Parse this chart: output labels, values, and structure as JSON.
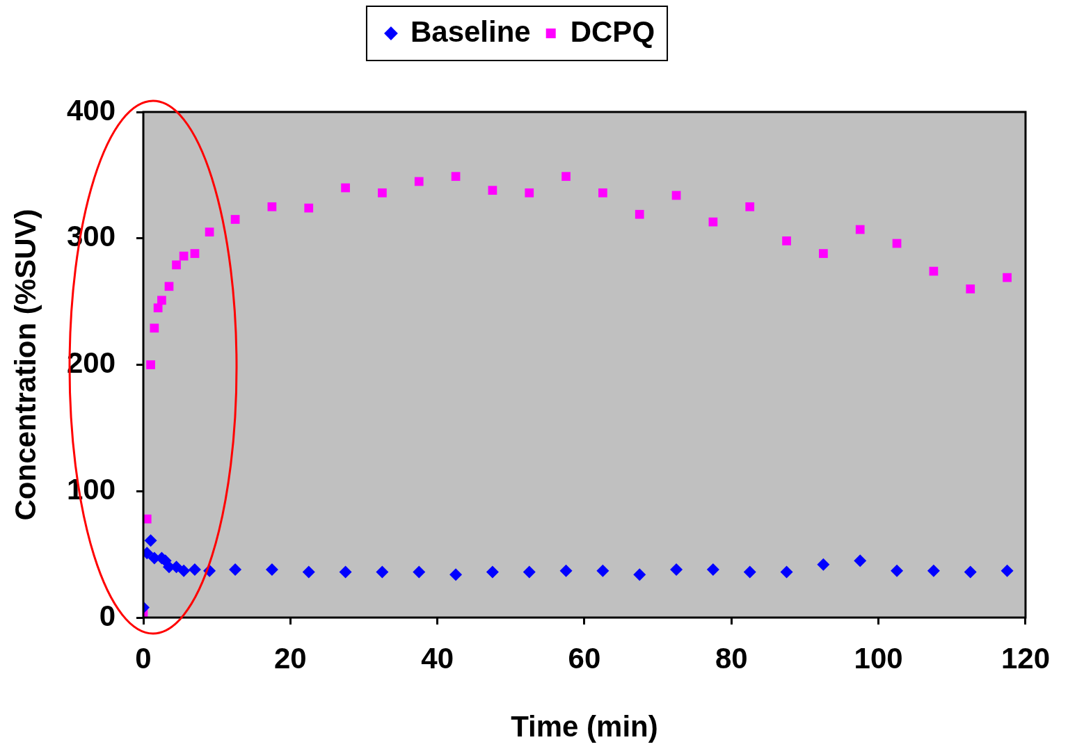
{
  "chart_data": {
    "type": "scatter",
    "xlabel": "Time (min)",
    "ylabel": "Concentration (%SUV)",
    "xlim": [
      0,
      120
    ],
    "xticks": [
      0,
      20,
      40,
      60,
      80,
      100,
      120
    ],
    "ylim": [
      0,
      400
    ],
    "yticks": [
      0,
      100,
      200,
      300,
      400
    ],
    "legend": "top",
    "series": [
      {
        "name": "Baseline",
        "color": "#0000ff",
        "marker": "diamond",
        "x": [
          0,
          0.5,
          1,
          1.5,
          2.5,
          3,
          3.5,
          4.5,
          5.5,
          7,
          9,
          12.5,
          17.5,
          22.5,
          27.5,
          32.5,
          37.5,
          42.5,
          47.5,
          52.5,
          57.5,
          62.5,
          67.5,
          72.5,
          77.5,
          82.5,
          87.5,
          92.5,
          97.5,
          102.5,
          107.5,
          112.5,
          117.5
        ],
        "values": [
          8,
          51,
          61,
          47,
          47,
          45,
          40,
          40,
          37,
          38,
          37,
          38,
          38,
          36,
          36,
          36,
          36,
          34,
          36,
          36,
          37,
          37,
          34,
          38,
          38,
          36,
          36,
          42,
          45,
          37,
          37,
          36,
          37
        ]
      },
      {
        "name": "DCPQ",
        "color": "#ff00ff",
        "marker": "square",
        "x": [
          0,
          0.5,
          1,
          1.5,
          2,
          2.5,
          3.5,
          4.5,
          5.5,
          7,
          9,
          12.5,
          17.5,
          22.5,
          27.5,
          32.5,
          37.5,
          42.5,
          47.5,
          52.5,
          57.5,
          62.5,
          67.5,
          72.5,
          77.5,
          82.5,
          87.5,
          92.5,
          97.5,
          102.5,
          107.5,
          112.5,
          117.5
        ],
        "values": [
          4,
          78,
          200,
          229,
          245,
          251,
          262,
          279,
          286,
          288,
          305,
          315,
          325,
          324,
          340,
          336,
          345,
          349,
          338,
          336,
          349,
          336,
          319,
          334,
          313,
          325,
          298,
          288,
          307,
          296,
          274,
          260,
          269
        ]
      }
    ]
  }
}
